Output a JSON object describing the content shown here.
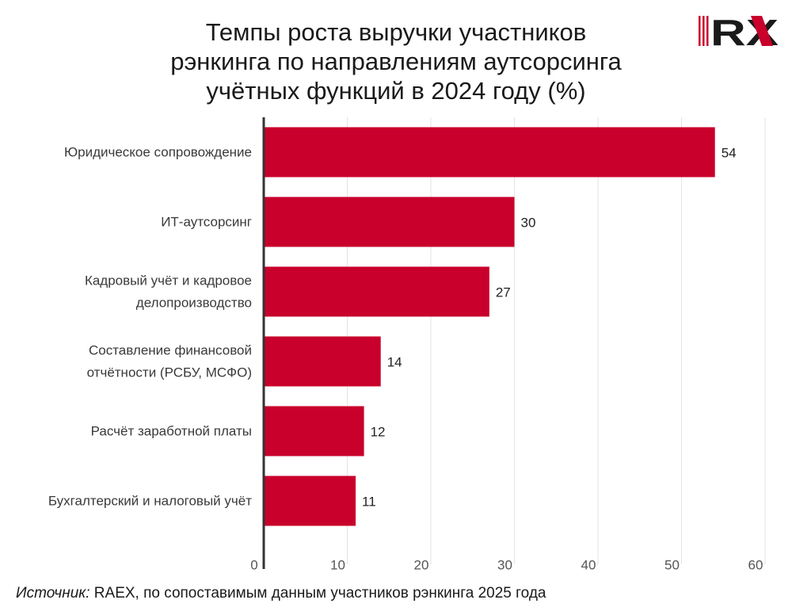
{
  "title_lines": [
    "Темпы роста выручки участников",
    "рэнкинга по направлениям аутсорсинга",
    "учётных функций в 2024 году (%)"
  ],
  "logo": {
    "text": "RX",
    "color": "#c8002b"
  },
  "source": {
    "prefix": "Источник:",
    "text": " RAEX, по сопоставимым данным участников рэнкинга 2025 года"
  },
  "colors": {
    "bar": "#c8002b",
    "grid": "#e3e3e3",
    "axis": "#333333"
  },
  "chart_data": {
    "type": "bar",
    "orientation": "horizontal",
    "categories": [
      [
        "Юридическое сопровождение"
      ],
      [
        "ИТ-аутсорсинг"
      ],
      [
        "Кадровый учёт и кадровое",
        "делопроизводство"
      ],
      [
        "Составление финансовой",
        "отчётности (РСБУ, МСФО)"
      ],
      [
        "Расчёт заработной платы"
      ],
      [
        "Бухгалтерский и налоговый учёт"
      ]
    ],
    "values": [
      54,
      30,
      27,
      14,
      12,
      11
    ],
    "value_labels": [
      "54",
      "30",
      "27",
      "14",
      "12",
      "11"
    ],
    "xlim": [
      0,
      60
    ],
    "xticks": [
      0,
      10,
      20,
      30,
      40,
      50,
      60
    ],
    "xtick_labels": [
      "0",
      "10",
      "20",
      "30",
      "40",
      "50",
      "60"
    ],
    "grid": "vertical",
    "legend": "none"
  }
}
